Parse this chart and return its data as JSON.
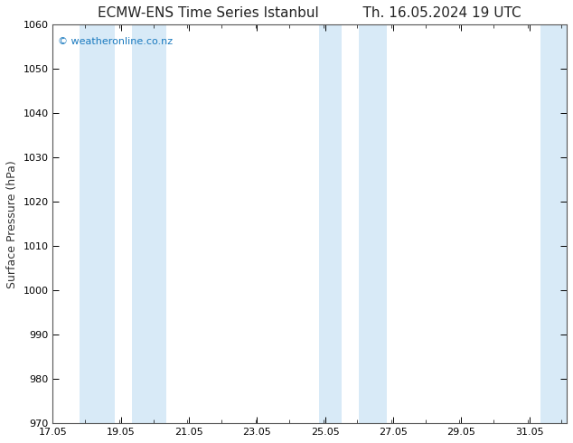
{
  "title_left": "ECMW-ENS Time Series Istanbul",
  "title_right": "Th. 16.05.2024 19 UTC",
  "ylabel": "Surface Pressure (hPa)",
  "xlim_left": 17.05,
  "xlim_right": 32.15,
  "ylim_bottom": 970,
  "ylim_top": 1060,
  "yticks": [
    970,
    980,
    990,
    1000,
    1010,
    1020,
    1030,
    1040,
    1050,
    1060
  ],
  "xtick_major_positions": [
    17.05,
    19.05,
    21.05,
    23.05,
    25.05,
    27.05,
    29.05,
    31.05
  ],
  "xtick_major_labels": [
    "17.05",
    "19.05",
    "21.05",
    "23.05",
    "25.05",
    "27.05",
    "29.05",
    "31.05"
  ],
  "xtick_minor_step": 1.0,
  "background_color": "#ffffff",
  "plot_bg_color": "#ffffff",
  "shaded_bands": [
    {
      "x_start": 17.842,
      "x_end": 18.875
    },
    {
      "x_start": 19.375,
      "x_end": 20.375
    },
    {
      "x_start": 24.875,
      "x_end": 25.542
    },
    {
      "x_start": 26.042,
      "x_end": 26.875
    },
    {
      "x_start": 31.375,
      "x_end": 32.15
    }
  ],
  "band_color": "#d8eaf7",
  "watermark_text": "© weatheronline.co.nz",
  "watermark_color": "#1a7abf",
  "watermark_fontsize": 8,
  "title_fontsize": 11,
  "label_fontsize": 9,
  "tick_fontsize": 8
}
